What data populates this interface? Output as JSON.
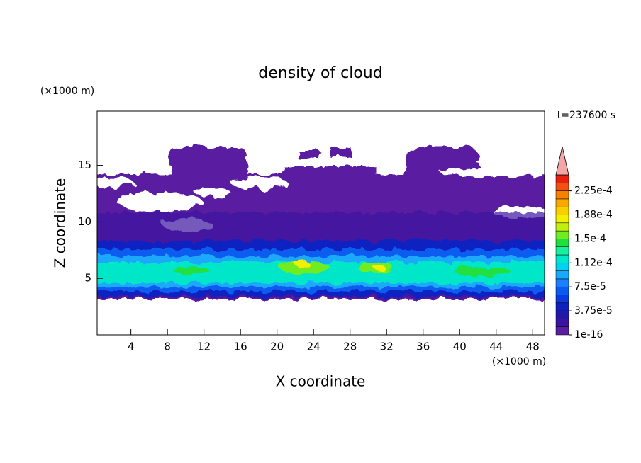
{
  "chart_data": {
    "type": "contour",
    "title": "density of cloud",
    "xlabel": "X coordinate",
    "ylabel": "Z coordinate",
    "x_unit": "(×1000 m)",
    "y_unit": "(×1000 m)",
    "time_label": "t=237600 s",
    "xlim": [
      0.3,
      49.3
    ],
    "ylim": [
      0,
      19.8
    ],
    "xticks": [
      4,
      8,
      12,
      16,
      20,
      24,
      28,
      32,
      36,
      40,
      44,
      48
    ],
    "yticks": [
      5,
      10,
      15
    ],
    "colorbar": {
      "levels": [
        1e-16,
        1.25e-05,
        2.5e-05,
        3.75e-05,
        5e-05,
        6.25e-05,
        7.5e-05,
        8.75e-05,
        0.0001,
        0.0001125,
        0.000125,
        0.0001375,
        0.00015,
        0.0001625,
        0.000175,
        0.0001875,
        0.0002,
        0.0002125,
        0.000225,
        0.0002375,
        0.00025
      ],
      "colors": [
        "#5a1ea0",
        "#3a14a0",
        "#2218a8",
        "#1020c0",
        "#0a3ae0",
        "#0a5cf0",
        "#1a80ff",
        "#1aa8ff",
        "#00d2f0",
        "#00e6c8",
        "#18f0a0",
        "#20e040",
        "#70ec20",
        "#c0f010",
        "#f0f000",
        "#f8d000",
        "#f8a800",
        "#f88000",
        "#f05010",
        "#e82010"
      ],
      "extend_color": "#f4a6a6",
      "ticks": [
        {
          "value": 1e-16,
          "label": "1e-16"
        },
        {
          "value": 3.75e-05,
          "label": "3.75e-5"
        },
        {
          "value": 7.5e-05,
          "label": "7.5e-5"
        },
        {
          "value": 0.0001125,
          "label": "1.12e-4"
        },
        {
          "value": 0.00015,
          "label": "1.5e-4"
        },
        {
          "value": 0.0001875,
          "label": "1.88e-4"
        },
        {
          "value": 0.000225,
          "label": "2.25e-4"
        }
      ]
    }
  }
}
